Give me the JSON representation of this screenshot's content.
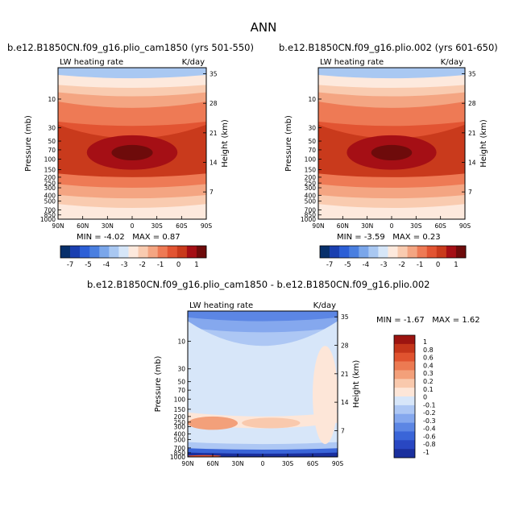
{
  "figure": {
    "title": "ANN"
  },
  "colors": {
    "palette": [
      "#08306b",
      "#1a3fb0",
      "#2c5fd6",
      "#4a7fe0",
      "#7aa6ea",
      "#a9c8f2",
      "#d6e6f8",
      "#fde9dd",
      "#f9cbb0",
      "#f4a582",
      "#ee7a55",
      "#e25432",
      "#c93a1c",
      "#a50f15",
      "#6e0b0b"
    ],
    "diff_palette": [
      "#1a2f9e",
      "#2947c2",
      "#3a65d8",
      "#5c86e4",
      "#85a8ee",
      "#adc7f4",
      "#d7e6f9",
      "#fde6d8",
      "#f9c9ad",
      "#f3a07a",
      "#ec7a52",
      "#e0532f",
      "#c4351a",
      "#9c1410"
    ]
  },
  "chart_data": [
    {
      "id": "panel-1",
      "type": "heatmap",
      "title": "b.e12.B1850CN.f09_g16.plio_cam1850 (yrs 501-550)",
      "variable": "LW heating rate",
      "units": "K/day",
      "ylabel": "Pressure (mb)",
      "ylabel_right": "Height (km)",
      "x_ticks": [
        "90N",
        "60N",
        "30N",
        "0",
        "30S",
        "60S",
        "90S"
      ],
      "x_values": [
        90,
        60,
        30,
        0,
        -30,
        -60,
        -90
      ],
      "xlim": [
        90,
        -90
      ],
      "y_ticks": [
        "10",
        "30",
        "50",
        "70",
        "100",
        "150",
        "200",
        "250",
        "300",
        "400",
        "500",
        "700",
        "850",
        "1000"
      ],
      "y_values": [
        10,
        30,
        50,
        70,
        100,
        150,
        200,
        250,
        300,
        400,
        500,
        700,
        850,
        1000
      ],
      "ylim": [
        3,
        1000
      ],
      "y_scale": "log",
      "y2_ticks": [
        "35",
        "28",
        "21",
        "14",
        "7"
      ],
      "min_label": "MIN =",
      "min": "-4.02",
      "max_label": "MAX =",
      "max": "0.87",
      "colorbar_labels": [
        "-7",
        "-5",
        "-4",
        "-3",
        "-2",
        "-1",
        "0",
        "1"
      ],
      "bands": [
        {
          "p_top": 3,
          "p_bot": 4.5,
          "level": 5,
          "pole_shift": 0
        },
        {
          "p_top": 4.5,
          "p_bot": 6.5,
          "level": 7,
          "pole_shift": 0
        },
        {
          "p_top": 6.5,
          "p_bot": 9,
          "level": 8,
          "pole_shift": 0
        },
        {
          "p_top": 9,
          "p_bot": 14,
          "level": 9,
          "pole_shift": 0
        },
        {
          "p_top": 14,
          "p_bot": 28,
          "level": 10,
          "pole_shift": 0
        },
        {
          "p_top": 28,
          "p_bot": 45,
          "level": 11,
          "pole_shift": 0
        },
        {
          "p_top": 45,
          "p_bot": 200,
          "level": 12,
          "pole_shift": 0
        },
        {
          "p_top": 200,
          "p_bot": 300,
          "level": 10,
          "pole_shift": 0
        },
        {
          "p_top": 300,
          "p_bot": 450,
          "level": 9,
          "pole_shift": 0
        },
        {
          "p_top": 450,
          "p_bot": 650,
          "level": 8,
          "pole_shift": 0
        },
        {
          "p_top": 650,
          "p_bot": 1000,
          "level": 7,
          "pole_shift": 0
        }
      ],
      "blobs": [
        {
          "lat": 0,
          "p": 80,
          "lat_halfwidth": 25,
          "p_top": 58,
          "p_bot": 105,
          "level": 14
        },
        {
          "lat": 0,
          "p": 80,
          "lat_halfwidth": 55,
          "p_top": 40,
          "p_bot": 150,
          "level": 13
        }
      ]
    },
    {
      "id": "panel-2",
      "type": "heatmap",
      "title": "b.e12.B1850CN.f09_g16.plio.002 (yrs 601-650)",
      "variable": "LW heating rate",
      "units": "K/day",
      "ylabel": "Pressure (mb)",
      "ylabel_right": "Height (km)",
      "x_ticks": [
        "90N",
        "60N",
        "30N",
        "0",
        "30S",
        "60S",
        "90S"
      ],
      "x_values": [
        90,
        60,
        30,
        0,
        -30,
        -60,
        -90
      ],
      "xlim": [
        90,
        -90
      ],
      "y_ticks": [
        "10",
        "30",
        "50",
        "70",
        "100",
        "150",
        "200",
        "250",
        "300",
        "400",
        "500",
        "700",
        "850",
        "1000"
      ],
      "y_values": [
        10,
        30,
        50,
        70,
        100,
        150,
        200,
        250,
        300,
        400,
        500,
        700,
        850,
        1000
      ],
      "ylim": [
        3,
        1000
      ],
      "y_scale": "log",
      "y2_ticks": [
        "35",
        "28",
        "21",
        "14",
        "7"
      ],
      "min_label": "MIN =",
      "min": "-3.59",
      "max_label": "MAX =",
      "max": "0.23",
      "colorbar_labels": [
        "-7",
        "-5",
        "-4",
        "-3",
        "-2",
        "-1",
        "0",
        "1"
      ],
      "bands": [
        {
          "p_top": 3,
          "p_bot": 4.5,
          "level": 5
        },
        {
          "p_top": 4.5,
          "p_bot": 6.5,
          "level": 7
        },
        {
          "p_top": 6.5,
          "p_bot": 9,
          "level": 8
        },
        {
          "p_top": 9,
          "p_bot": 14,
          "level": 9
        },
        {
          "p_top": 14,
          "p_bot": 28,
          "level": 10
        },
        {
          "p_top": 28,
          "p_bot": 45,
          "level": 11
        },
        {
          "p_top": 45,
          "p_bot": 200,
          "level": 12
        },
        {
          "p_top": 200,
          "p_bot": 300,
          "level": 10
        },
        {
          "p_top": 300,
          "p_bot": 450,
          "level": 9
        },
        {
          "p_top": 450,
          "p_bot": 650,
          "level": 8
        },
        {
          "p_top": 650,
          "p_bot": 1000,
          "level": 7
        }
      ],
      "blobs": [
        {
          "lat": 0,
          "p": 80,
          "lat_halfwidth": 25,
          "p_top": 58,
          "p_bot": 105,
          "level": 14
        },
        {
          "lat": 0,
          "p": 80,
          "lat_halfwidth": 55,
          "p_top": 40,
          "p_bot": 150,
          "level": 13
        }
      ]
    },
    {
      "id": "panel-diff",
      "type": "heatmap",
      "title": "b.e12.B1850CN.f09_g16.plio_cam1850 - b.e12.B1850CN.f09_g16.plio.002",
      "variable": "LW heating rate",
      "units": "K/day",
      "ylabel": "Pressure (mb)",
      "ylabel_right": "Height (km)",
      "x_ticks": [
        "90N",
        "60N",
        "30N",
        "0",
        "30S",
        "60S",
        "90S"
      ],
      "x_values": [
        90,
        60,
        30,
        0,
        -30,
        -60,
        -90
      ],
      "xlim": [
        90,
        -90
      ],
      "y_ticks": [
        "10",
        "30",
        "50",
        "70",
        "100",
        "150",
        "200",
        "250",
        "300",
        "400",
        "500",
        "700",
        "850",
        "1000"
      ],
      "y_values": [
        10,
        30,
        50,
        70,
        100,
        150,
        200,
        250,
        300,
        400,
        500,
        700,
        850,
        1000
      ],
      "ylim": [
        3,
        1000
      ],
      "y_scale": "log",
      "y2_ticks": [
        "35",
        "28",
        "21",
        "14",
        "7"
      ],
      "min_label": "MIN =",
      "min": "-1.67",
      "max_label": "MAX =",
      "max": "1.62",
      "colorbar_labels": [
        "1",
        "0.8",
        "0.6",
        "0.4",
        "0.3",
        "0.2",
        "0.1",
        "0",
        "-0.1",
        "-0.2",
        "-0.3",
        "-0.4",
        "-0.6",
        "-0.8",
        "-1"
      ],
      "bands": [
        {
          "p_top": 3,
          "p_bot": 4.5,
          "level": 3
        },
        {
          "p_top": 4.5,
          "p_bot": 7,
          "level": 4
        },
        {
          "p_top": 7,
          "p_bot": 12,
          "level": 5
        },
        {
          "p_top": 12,
          "p_bot": 200,
          "level": 6
        },
        {
          "p_top": 200,
          "p_bot": 320,
          "level": 7
        },
        {
          "p_top": 320,
          "p_bot": 600,
          "level": 6
        },
        {
          "p_top": 600,
          "p_bot": 750,
          "level": 5
        },
        {
          "p_top": 750,
          "p_bot": 880,
          "level": 2
        },
        {
          "p_top": 880,
          "p_bot": 1000,
          "level": 0
        }
      ],
      "blobs": [
        {
          "lat": -75,
          "p": 60,
          "lat_halfwidth": 15,
          "p_top": 12,
          "p_bot": 600,
          "level": 7
        },
        {
          "lat": 60,
          "p": 260,
          "lat_halfwidth": 30,
          "p_top": 200,
          "p_bot": 340,
          "level": 9
        },
        {
          "lat": -10,
          "p": 260,
          "lat_halfwidth": 35,
          "p_top": 210,
          "p_bot": 320,
          "level": 8
        },
        {
          "lat": 70,
          "p": 950,
          "lat_halfwidth": 20,
          "p_top": 930,
          "p_bot": 1000,
          "level": 11
        }
      ]
    }
  ]
}
